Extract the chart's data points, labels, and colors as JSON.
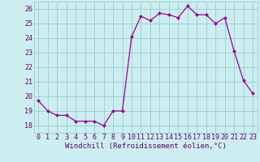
{
  "hours": [
    0,
    1,
    2,
    3,
    4,
    5,
    6,
    7,
    8,
    9,
    10,
    11,
    12,
    13,
    14,
    15,
    16,
    17,
    18,
    19,
    20,
    21,
    22,
    23
  ],
  "values": [
    19.7,
    19.0,
    18.7,
    18.7,
    18.3,
    18.3,
    18.3,
    18.0,
    19.0,
    19.0,
    24.1,
    25.5,
    25.2,
    25.7,
    25.6,
    25.4,
    26.2,
    25.6,
    25.6,
    25.0,
    25.4,
    23.1,
    21.1,
    20.2
  ],
  "xlim": [
    -0.5,
    23.5
  ],
  "ylim": [
    17.5,
    26.5
  ],
  "yticks": [
    18,
    19,
    20,
    21,
    22,
    23,
    24,
    25,
    26
  ],
  "xticks": [
    0,
    1,
    2,
    3,
    4,
    5,
    6,
    7,
    8,
    9,
    10,
    11,
    12,
    13,
    14,
    15,
    16,
    17,
    18,
    19,
    20,
    21,
    22,
    23
  ],
  "xlabel": "Windchill (Refroidissement éolien,°C)",
  "line_color": "#990099",
  "marker_color": "#990099",
  "bg_color": "#cceef0",
  "grid_color": "#99cccc",
  "tick_label_color": "#660066",
  "xlabel_color": "#660066",
  "axis_label_fontsize": 6.5,
  "tick_fontsize": 6.0,
  "marker": "D",
  "marker_size": 2.0,
  "line_width": 0.9
}
